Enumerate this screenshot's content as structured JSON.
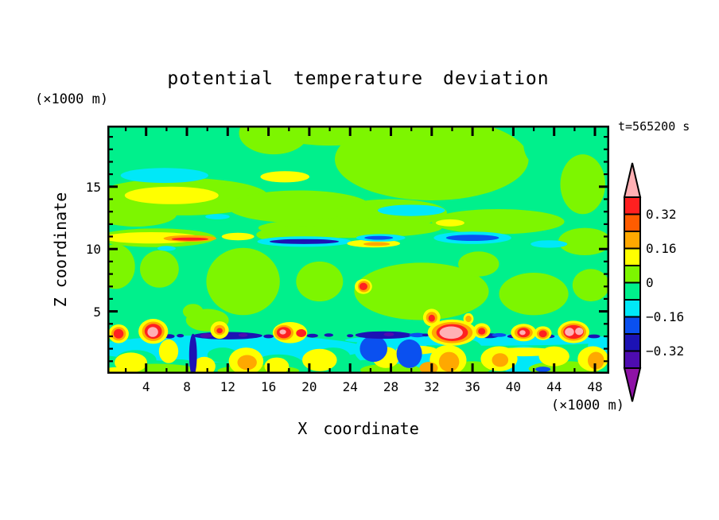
{
  "title": "potential temperature deviation",
  "annotations": {
    "time_label": "t=565200 s"
  },
  "axes": {
    "x": {
      "label": "X coordinate",
      "unit": "(×1000 m)",
      "major_ticks": [
        4,
        8,
        12,
        16,
        20,
        24,
        28,
        32,
        36,
        40,
        44,
        48
      ],
      "minor_step": 2,
      "range": [
        0.2,
        49.4
      ]
    },
    "z": {
      "label": "Z coordinate",
      "unit": "(×1000 m)",
      "major_ticks": [
        5,
        10,
        15
      ],
      "minor_step": 1,
      "range": [
        0,
        19.9
      ]
    }
  },
  "colorbar": {
    "labels": [
      "0.32",
      "0.16",
      "0",
      "−0.16",
      "−0.32"
    ],
    "label_boundaries": [
      1,
      3,
      5,
      7,
      9
    ],
    "segments": [
      "#ff2020",
      "#ff5c00",
      "#ffa800",
      "#ffff00",
      "#7df600",
      "#00f08c",
      "#00e8f8",
      "#0a50f0",
      "#1c12b4",
      "#4e0cb0"
    ],
    "arrow_top": "#ffb0b4",
    "arrow_bottom": "#8e12a6",
    "levels": [
      0.4,
      0.32,
      0.24,
      0.16,
      0.08,
      0,
      -0.08,
      -0.16,
      -0.24,
      -0.32,
      -0.4
    ]
  },
  "chart_data": {
    "type": "heatmap",
    "title": "potential temperature deviation",
    "xlabel": "X coordinate (×1000 m)",
    "ylabel": "Z coordinate (×1000 m)",
    "time_annotation": "t=565200 s",
    "x_range": [
      0.2,
      49.4
    ],
    "z_range": [
      0,
      19.9
    ],
    "contour_interval": 0.08,
    "levels": [
      0.4,
      0.32,
      0.24,
      0.16,
      0.08,
      0,
      -0.08,
      -0.16,
      -0.24,
      -0.32,
      -0.4
    ],
    "palette": {
      "pink": "#ffb0b4",
      "red": "#ff2020",
      "orangered": "#ff5c00",
      "orange": "#ffa800",
      "yellow": "#ffff00",
      "lime": "#7df600",
      "spring": "#00f08c",
      "cyan": "#00e8f8",
      "blue": "#0a50f0",
      "navy": "#1c12b4",
      "violet": "#4e0cb0",
      "purple": "#8e12a6"
    },
    "background_color_key": "spring",
    "features": [
      [
        "lime",
        16.5,
        19.3,
        3.4,
        1.7
      ],
      [
        "lime",
        22,
        19.6,
        6,
        1.3
      ],
      [
        "lime",
        32,
        17.2,
        9.5,
        3.3
      ],
      [
        "spring",
        45.2,
        18.4,
        4.2,
        2.6
      ],
      [
        "lime",
        46.8,
        15.2,
        2.2,
        2.4
      ],
      [
        "lime",
        7.5,
        14.2,
        8.5,
        1.5
      ],
      [
        "lime",
        3,
        12.8,
        4,
        1.0
      ],
      [
        "lime",
        19,
        13.4,
        7,
        1.3
      ],
      [
        "lime",
        28,
        12.9,
        5.5,
        1.1
      ],
      [
        "lime",
        38.5,
        12.2,
        6.5,
        1.0
      ],
      [
        "lime",
        24,
        11.7,
        9,
        0.8
      ],
      [
        "lime",
        47,
        10.6,
        2.6,
        1.1
      ],
      [
        "lime",
        5,
        10.9,
        5.8,
        0.75
      ],
      [
        "lime",
        19,
        11.15,
        4.2,
        0.7
      ],
      [
        "lime",
        1,
        8.6,
        1.9,
        1.8
      ],
      [
        "lime",
        5.3,
        8.4,
        1.9,
        1.5
      ],
      [
        "lime",
        13.5,
        7.4,
        3.6,
        2.7
      ],
      [
        "lime",
        21,
        7.4,
        2.3,
        1.6
      ],
      [
        "lime",
        31,
        6.6,
        6.6,
        2.3
      ],
      [
        "lime",
        36.6,
        8.8,
        2.0,
        1.0
      ],
      [
        "lime",
        42,
        6.4,
        3.4,
        1.7
      ],
      [
        "lime",
        47.6,
        7.1,
        1.8,
        1.3
      ],
      [
        "lime",
        10,
        4.3,
        2.1,
        0.9
      ],
      [
        "lime",
        8.6,
        5.0,
        1.0,
        0.6
      ],
      [
        "cyan",
        5.8,
        15.9,
        4.3,
        0.6
      ],
      [
        "yellow",
        17.6,
        15.8,
        2.4,
        0.45
      ],
      [
        "yellow",
        6.5,
        14.3,
        4.6,
        0.7
      ],
      [
        "cyan",
        30,
        13.1,
        3.3,
        0.45
      ],
      [
        "cyan",
        11,
        12.6,
        1.2,
        0.22
      ],
      [
        "yellow",
        33.8,
        12.1,
        1.4,
        0.28
      ],
      [
        "cyan",
        6,
        10.05,
        0.9,
        0.2
      ],
      [
        "yellow",
        4.5,
        10.9,
        4.8,
        0.45
      ],
      [
        "orange",
        8.3,
        10.85,
        2.6,
        0.26
      ],
      [
        "red",
        8.3,
        10.8,
        1.8,
        0.13
      ],
      [
        "yellow",
        13,
        11.0,
        1.6,
        0.3
      ],
      [
        "cyan",
        19.5,
        10.6,
        4.6,
        0.42
      ],
      [
        "navy",
        19.5,
        10.6,
        3.4,
        0.2
      ],
      [
        "yellow",
        26.3,
        10.45,
        2.6,
        0.32
      ],
      [
        "orange",
        26.6,
        10.4,
        1.3,
        0.15
      ],
      [
        "cyan",
        27,
        10.9,
        2.4,
        0.3
      ],
      [
        "blue",
        26.8,
        10.9,
        1.4,
        0.15
      ],
      [
        "cyan",
        36,
        10.9,
        3.8,
        0.5
      ],
      [
        "blue",
        36,
        10.9,
        2.6,
        0.25
      ],
      [
        "cyan",
        43.5,
        10.4,
        1.8,
        0.3
      ],
      [
        "yellow",
        25.3,
        7.0,
        0.85,
        0.6
      ],
      [
        "orange",
        25.35,
        7.0,
        0.6,
        0.45
      ],
      [
        "red",
        25.3,
        7.0,
        0.4,
        0.3
      ],
      [
        "cyan",
        12,
        2.0,
        13.5,
        1.1
      ],
      [
        "cyan",
        37,
        2.7,
        13.5,
        0.45
      ],
      [
        "cyan",
        28,
        1.9,
        3.6,
        1.5
      ],
      [
        "cyan",
        31.6,
        0.9,
        1.6,
        1.0
      ],
      [
        "cyan",
        41,
        1.0,
        2.3,
        1.2
      ],
      [
        "cyan",
        48.5,
        2.2,
        1.2,
        0.8
      ],
      [
        "spring",
        3,
        1.1,
        2.0,
        0.8
      ],
      [
        "spring",
        7.2,
        0.55,
        2.0,
        0.6
      ],
      [
        "spring",
        11.5,
        1.5,
        1.5,
        0.6
      ],
      [
        "spring",
        17,
        0.75,
        2.4,
        0.8
      ],
      [
        "spring",
        22.3,
        1.4,
        1.7,
        0.7
      ],
      [
        "spring",
        25.5,
        0.5,
        1.5,
        0.6
      ],
      [
        "spring",
        35.8,
        1.8,
        1.2,
        0.9
      ],
      [
        "spring",
        44.5,
        1.0,
        1.6,
        0.9
      ],
      [
        "lime",
        5,
        0.3,
        4,
        0.5
      ],
      [
        "lime",
        15,
        0.25,
        4,
        0.45
      ],
      [
        "lime",
        28,
        0.3,
        3,
        0.5
      ],
      [
        "lime",
        36,
        0.5,
        2,
        0.5
      ],
      [
        "lime",
        45,
        0.4,
        3.5,
        0.6
      ],
      [
        "yellow",
        2.5,
        0.9,
        1.6,
        0.8
      ],
      [
        "yellow",
        6.2,
        1.8,
        0.95,
        0.95
      ],
      [
        "yellow",
        9.7,
        0.6,
        1.1,
        0.75
      ],
      [
        "yellow",
        13.8,
        1.0,
        1.7,
        1.1
      ],
      [
        "orange",
        13.9,
        0.9,
        0.95,
        0.6
      ],
      [
        "yellow",
        16.8,
        0.6,
        1.2,
        0.7
      ],
      [
        "yellow",
        21,
        1.1,
        1.7,
        0.9
      ],
      [
        "yellow",
        30.5,
        1.9,
        2.0,
        0.35
      ],
      [
        "yellow",
        41,
        1.75,
        3.4,
        0.35
      ],
      [
        "yellow",
        27.5,
        1.3,
        1.3,
        0.85
      ],
      [
        "yellow",
        33.6,
        1.1,
        1.8,
        1.2
      ],
      [
        "orange",
        33.7,
        0.95,
        1.0,
        0.8
      ],
      [
        "orange",
        31.7,
        0.45,
        0.9,
        0.5
      ],
      [
        "yellow",
        38.6,
        1.2,
        1.8,
        1.0
      ],
      [
        "orange",
        38.7,
        1.1,
        0.8,
        0.55
      ],
      [
        "yellow",
        44,
        1.4,
        1.5,
        0.8
      ],
      [
        "yellow",
        47.8,
        1.2,
        1.5,
        1.0
      ],
      [
        "orange",
        48.1,
        1.05,
        0.8,
        0.7
      ],
      [
        "yellow",
        1.2,
        0.18,
        1.5,
        0.35
      ],
      [
        "blue",
        26.3,
        2.0,
        1.35,
        1.05
      ],
      [
        "blue",
        29.8,
        1.6,
        1.25,
        1.15
      ],
      [
        "navy",
        8.6,
        1.5,
        0.38,
        1.7
      ],
      [
        "blue",
        42.9,
        0.35,
        0.75,
        0.22
      ],
      [
        "navy",
        6.3,
        3.0,
        0.5,
        0.17
      ],
      [
        "navy",
        7.35,
        3.05,
        0.35,
        0.14
      ],
      [
        "navy",
        12,
        3.05,
        3.4,
        0.3
      ],
      [
        "violet",
        9.9,
        3.05,
        0.6,
        0.18
      ],
      [
        "violet",
        13.5,
        3.1,
        0.45,
        0.15
      ],
      [
        "navy",
        16,
        3.0,
        0.5,
        0.15
      ],
      [
        "navy",
        20.3,
        3.05,
        0.55,
        0.15
      ],
      [
        "navy",
        21.9,
        3.1,
        0.45,
        0.14
      ],
      [
        "navy",
        24,
        3.05,
        0.32,
        0.13
      ],
      [
        "navy",
        27.3,
        3.1,
        2.8,
        0.3
      ],
      [
        "violet",
        27.8,
        3.15,
        0.5,
        0.15
      ],
      [
        "blue",
        30.6,
        3.1,
        0.8,
        0.18
      ],
      [
        "navy",
        31.4,
        3.1,
        0.35,
        0.12
      ],
      [
        "navy",
        37.6,
        3.05,
        1.0,
        0.2
      ],
      [
        "blue",
        38.6,
        3.1,
        0.7,
        0.15
      ],
      [
        "navy",
        39.9,
        3.0,
        0.5,
        0.14
      ],
      [
        "navy",
        43.6,
        3.0,
        0.45,
        0.14
      ],
      [
        "navy",
        47.9,
        3.0,
        0.6,
        0.15
      ],
      [
        "yellow",
        1.3,
        3.2,
        1.0,
        0.75
      ],
      [
        "orange",
        1.3,
        3.2,
        0.72,
        0.55
      ],
      [
        "red",
        1.3,
        3.2,
        0.48,
        0.38
      ],
      [
        "yellow",
        4.7,
        3.4,
        1.45,
        1.0
      ],
      [
        "orange",
        4.7,
        3.4,
        1.1,
        0.78
      ],
      [
        "red",
        4.7,
        3.4,
        0.85,
        0.6
      ],
      [
        "pink",
        4.65,
        3.35,
        0.52,
        0.4
      ],
      [
        "yellow",
        11.2,
        3.5,
        0.9,
        0.7
      ],
      [
        "orange",
        11.2,
        3.5,
        0.55,
        0.4
      ],
      [
        "red",
        11.2,
        3.45,
        0.3,
        0.22
      ],
      [
        "yellow",
        18.1,
        3.3,
        1.7,
        0.85
      ],
      [
        "orange",
        17.5,
        3.3,
        0.95,
        0.6
      ],
      [
        "red",
        17.5,
        3.3,
        0.7,
        0.45
      ],
      [
        "pink",
        17.4,
        3.35,
        0.32,
        0.2
      ],
      [
        "red",
        19.2,
        3.25,
        0.5,
        0.32
      ],
      [
        "yellow",
        34,
        3.3,
        2.4,
        1.05
      ],
      [
        "orange",
        34,
        3.3,
        2.0,
        0.85
      ],
      [
        "red",
        34,
        3.3,
        1.55,
        0.68
      ],
      [
        "pink",
        33.9,
        3.3,
        1.15,
        0.5
      ],
      [
        "yellow",
        32,
        4.5,
        0.85,
        0.7
      ],
      [
        "orange",
        32,
        4.5,
        0.55,
        0.45
      ],
      [
        "red",
        32,
        4.45,
        0.32,
        0.28
      ],
      [
        "yellow",
        35.6,
        4.4,
        0.5,
        0.45
      ],
      [
        "orange",
        35.6,
        4.4,
        0.3,
        0.26
      ],
      [
        "yellow",
        36.9,
        3.45,
        0.85,
        0.6
      ],
      [
        "orange",
        36.9,
        3.4,
        0.55,
        0.4
      ],
      [
        "red",
        36.9,
        3.4,
        0.36,
        0.27
      ],
      [
        "yellow",
        41,
        3.3,
        1.25,
        0.7
      ],
      [
        "orange",
        41,
        3.3,
        0.9,
        0.5
      ],
      [
        "red",
        41,
        3.3,
        0.62,
        0.38
      ],
      [
        "pink",
        40.9,
        3.3,
        0.3,
        0.2
      ],
      [
        "yellow",
        42.9,
        3.25,
        0.85,
        0.55
      ],
      [
        "orange",
        42.9,
        3.2,
        0.6,
        0.4
      ],
      [
        "red",
        42.9,
        3.2,
        0.4,
        0.28
      ],
      [
        "yellow",
        45.9,
        3.35,
        1.55,
        0.9
      ],
      [
        "orange",
        45.9,
        3.35,
        1.25,
        0.7
      ],
      [
        "red",
        45.9,
        3.35,
        1.0,
        0.55
      ],
      [
        "pink",
        45.5,
        3.35,
        0.45,
        0.33
      ],
      [
        "pink",
        46.45,
        3.4,
        0.4,
        0.3
      ]
    ]
  }
}
